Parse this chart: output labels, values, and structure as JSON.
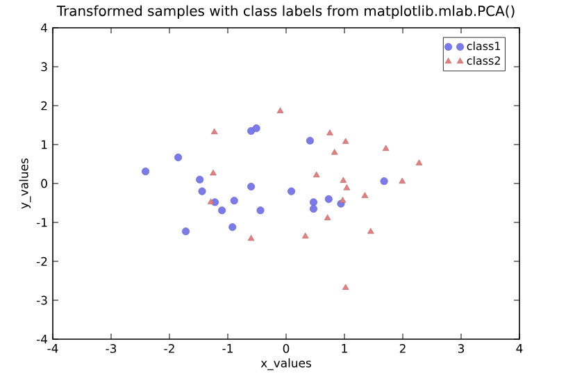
{
  "chart_data": {
    "type": "scatter",
    "title": "Transformed samples with class labels from matplotlib.mlab.PCA()",
    "xlabel": "x_values",
    "ylabel": "y_values",
    "xlim": [
      -4,
      4
    ],
    "ylim": [
      -4,
      4
    ],
    "xticks": [
      -4,
      -3,
      -2,
      -1,
      0,
      1,
      2,
      3,
      4
    ],
    "yticks": [
      -4,
      -3,
      -2,
      -1,
      0,
      1,
      2,
      3,
      4
    ],
    "legend": "top right",
    "series": [
      {
        "name": "class1",
        "color": "#7b7be8",
        "marker": "circle",
        "x": [
          -2.41,
          -1.85,
          -1.48,
          -1.44,
          -1.22,
          -1.1,
          -0.89,
          -1.72,
          -0.92,
          -0.6,
          -0.44,
          -0.6,
          -0.51,
          0.09,
          0.41,
          0.47,
          0.47,
          0.73,
          0.94,
          1.68
        ],
        "values": [
          0.31,
          0.67,
          0.1,
          -0.2,
          -0.48,
          -0.69,
          -0.44,
          -1.23,
          -1.12,
          -0.08,
          -0.69,
          1.35,
          1.42,
          -0.2,
          1.1,
          -0.48,
          -0.65,
          -0.4,
          -0.52,
          0.06
        ]
      },
      {
        "name": "class2",
        "color": "#e08080",
        "marker": "triangle",
        "x": [
          -1.23,
          -1.25,
          -1.29,
          -0.6,
          -0.1,
          0.75,
          1.02,
          0.83,
          1.71,
          2.28,
          0.52,
          0.98,
          1.04,
          1.99,
          1.35,
          0.97,
          0.71,
          0.33,
          1.45,
          1.02
        ],
        "values": [
          1.32,
          0.26,
          -0.48,
          -1.42,
          1.86,
          1.29,
          1.07,
          0.79,
          0.89,
          0.52,
          0.21,
          0.07,
          -0.12,
          0.05,
          -0.32,
          -0.44,
          -0.89,
          -1.36,
          -1.24,
          -2.68
        ]
      }
    ]
  }
}
